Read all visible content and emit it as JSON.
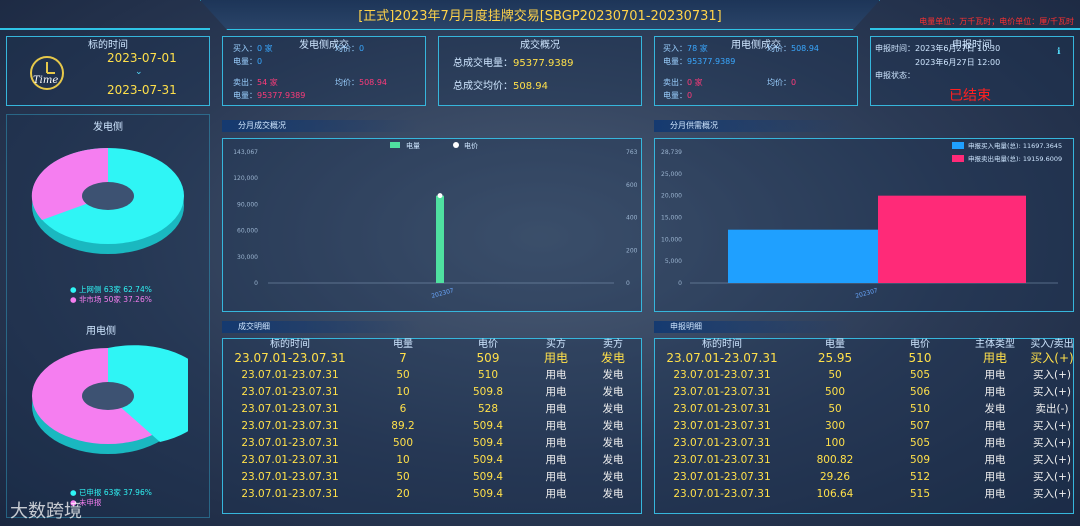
{
  "header": {
    "title": "[正式]2023年7月月度挂牌交易[SBGP20230701-20230731]",
    "legend": "电量单位：万千瓦时；电价单位：厘/千瓦时"
  },
  "target_time": {
    "title": "标的时间",
    "start": "2023-07-01",
    "end": "2023-07-31",
    "logo_text": "Time"
  },
  "gen_side": {
    "title": "发电侧成交",
    "buy_label": "买入：",
    "buy_count": "0 家",
    "buy_price_label": "均价：",
    "buy_price": "0",
    "buy_qty_label": "电量：",
    "buy_qty": "0",
    "sell_label": "卖出：",
    "sell_count": "54 家",
    "sell_price_label": "均价：",
    "sell_price": "508.94",
    "sell_qty_label": "电量：",
    "sell_qty": "95377.9389"
  },
  "deal_overview": {
    "title": "成交概况",
    "qty_label": "总成交电量：",
    "qty": "95377.9389",
    "price_label": "总成交均价：",
    "price": "508.94"
  },
  "use_side": {
    "title": "用电侧成交",
    "buy_label": "买入：",
    "buy_count": "78 家",
    "buy_price_label": "均价：",
    "buy_price": "508.94",
    "buy_qty_label": "电量：",
    "buy_qty": "95377.9389",
    "sell_label": "卖出：",
    "sell_count": "0 家",
    "sell_price_label": "均价：",
    "sell_price": "0",
    "sell_qty_label": "电量：",
    "sell_qty": "0"
  },
  "declare_time": {
    "title": "申报时间",
    "start_label": "申报时间：",
    "start": "2023年6月27日 10:30",
    "end": "2023年6月27日 12:00",
    "status_label": "申报状态：",
    "status": "已结束"
  },
  "pies": {
    "gen": {
      "title": "发电侧",
      "legend": [
        {
          "label": "上网侧 63家 62.74%",
          "value": 62.74,
          "color": "#2ff5f5"
        },
        {
          "label": "非市场 50家 37.26%",
          "value": 37.26,
          "color": "#f57ef0"
        }
      ]
    },
    "use": {
      "title": "用电侧",
      "legend": [
        {
          "label": "已申报 63家 37.96%",
          "value": 37.96,
          "color": "#2ff5f5"
        },
        {
          "label": "未申报",
          "value": 62.04,
          "color": "#f57ef0"
        }
      ]
    }
  },
  "monthly_section": "分月成交概况",
  "supply_section": "分月供需概况",
  "chart_data": [
    {
      "type": "bar",
      "categories": [
        "202307"
      ],
      "series": [
        {
          "name": "电量",
          "values": [
            95377.9389
          ],
          "color": "#4fe0a0"
        },
        {
          "name": "电价",
          "values": [
            508.94
          ],
          "color": "#ffffff"
        }
      ],
      "yticks_left": [
        "143,067",
        "120,000",
        "90,000",
        "60,000",
        "30,000",
        "0"
      ],
      "yticks_right": [
        "763",
        "600",
        "400",
        "200",
        "0"
      ],
      "ylim": [
        0,
        143067
      ],
      "ylim_right": [
        0,
        763
      ]
    },
    {
      "type": "bar",
      "categories": [
        "202307"
      ],
      "series": [
        {
          "name": "申报买入电量(总)",
          "value_text": "11697.3645",
          "values": [
            11697.3645
          ],
          "color": "#1fa0ff"
        },
        {
          "name": "申报卖出电量(总)",
          "value_text": "19159.6009",
          "values": [
            19159.6009
          ],
          "color": "#ff2a78"
        }
      ],
      "yticks": [
        "28,739",
        "25,000",
        "20,000",
        "15,000",
        "10,000",
        "5,000",
        "0"
      ],
      "ylim": [
        0,
        28739
      ]
    }
  ],
  "deal_table": {
    "section": "成交明细",
    "headers": [
      "标的时间",
      "电量",
      "电价",
      "买方",
      "卖方"
    ],
    "first": [
      "23.07.01-23.07.31",
      "7",
      "509",
      "用电",
      "发电"
    ],
    "rows": [
      [
        "23.07.01-23.07.31",
        "50",
        "510",
        "用电",
        "发电"
      ],
      [
        "23.07.01-23.07.31",
        "10",
        "509.8",
        "用电",
        "发电"
      ],
      [
        "23.07.01-23.07.31",
        "6",
        "528",
        "用电",
        "发电"
      ],
      [
        "23.07.01-23.07.31",
        "89.2",
        "509.4",
        "用电",
        "发电"
      ],
      [
        "23.07.01-23.07.31",
        "500",
        "509.4",
        "用电",
        "发电"
      ],
      [
        "23.07.01-23.07.31",
        "10",
        "509.4",
        "用电",
        "发电"
      ],
      [
        "23.07.01-23.07.31",
        "50",
        "509.4",
        "用电",
        "发电"
      ],
      [
        "23.07.01-23.07.31",
        "20",
        "509.4",
        "用电",
        "发电"
      ]
    ]
  },
  "declare_table": {
    "section": "申报明细",
    "headers": [
      "标的时间",
      "电量",
      "电价",
      "主体类型",
      "买入/卖出"
    ],
    "first": [
      "23.07.01-23.07.31",
      "25.95",
      "510",
      "用电",
      "买入(+)"
    ],
    "rows": [
      [
        "23.07.01-23.07.31",
        "50",
        "505",
        "用电",
        "买入(+)"
      ],
      [
        "23.07.01-23.07.31",
        "500",
        "506",
        "用电",
        "买入(+)"
      ],
      [
        "23.07.01-23.07.31",
        "50",
        "510",
        "发电",
        "卖出(-)"
      ],
      [
        "23.07.01-23.07.31",
        "300",
        "507",
        "用电",
        "买入(+)"
      ],
      [
        "23.07.01-23.07.31",
        "100",
        "505",
        "用电",
        "买入(+)"
      ],
      [
        "23.07.01-23.07.31",
        "800.82",
        "509",
        "用电",
        "买入(+)"
      ],
      [
        "23.07.01-23.07.31",
        "29.26",
        "512",
        "用电",
        "买入(+)"
      ],
      [
        "23.07.01-23.07.31",
        "106.64",
        "515",
        "用电",
        "买入(+)"
      ]
    ]
  },
  "watermark": "大数跨境"
}
